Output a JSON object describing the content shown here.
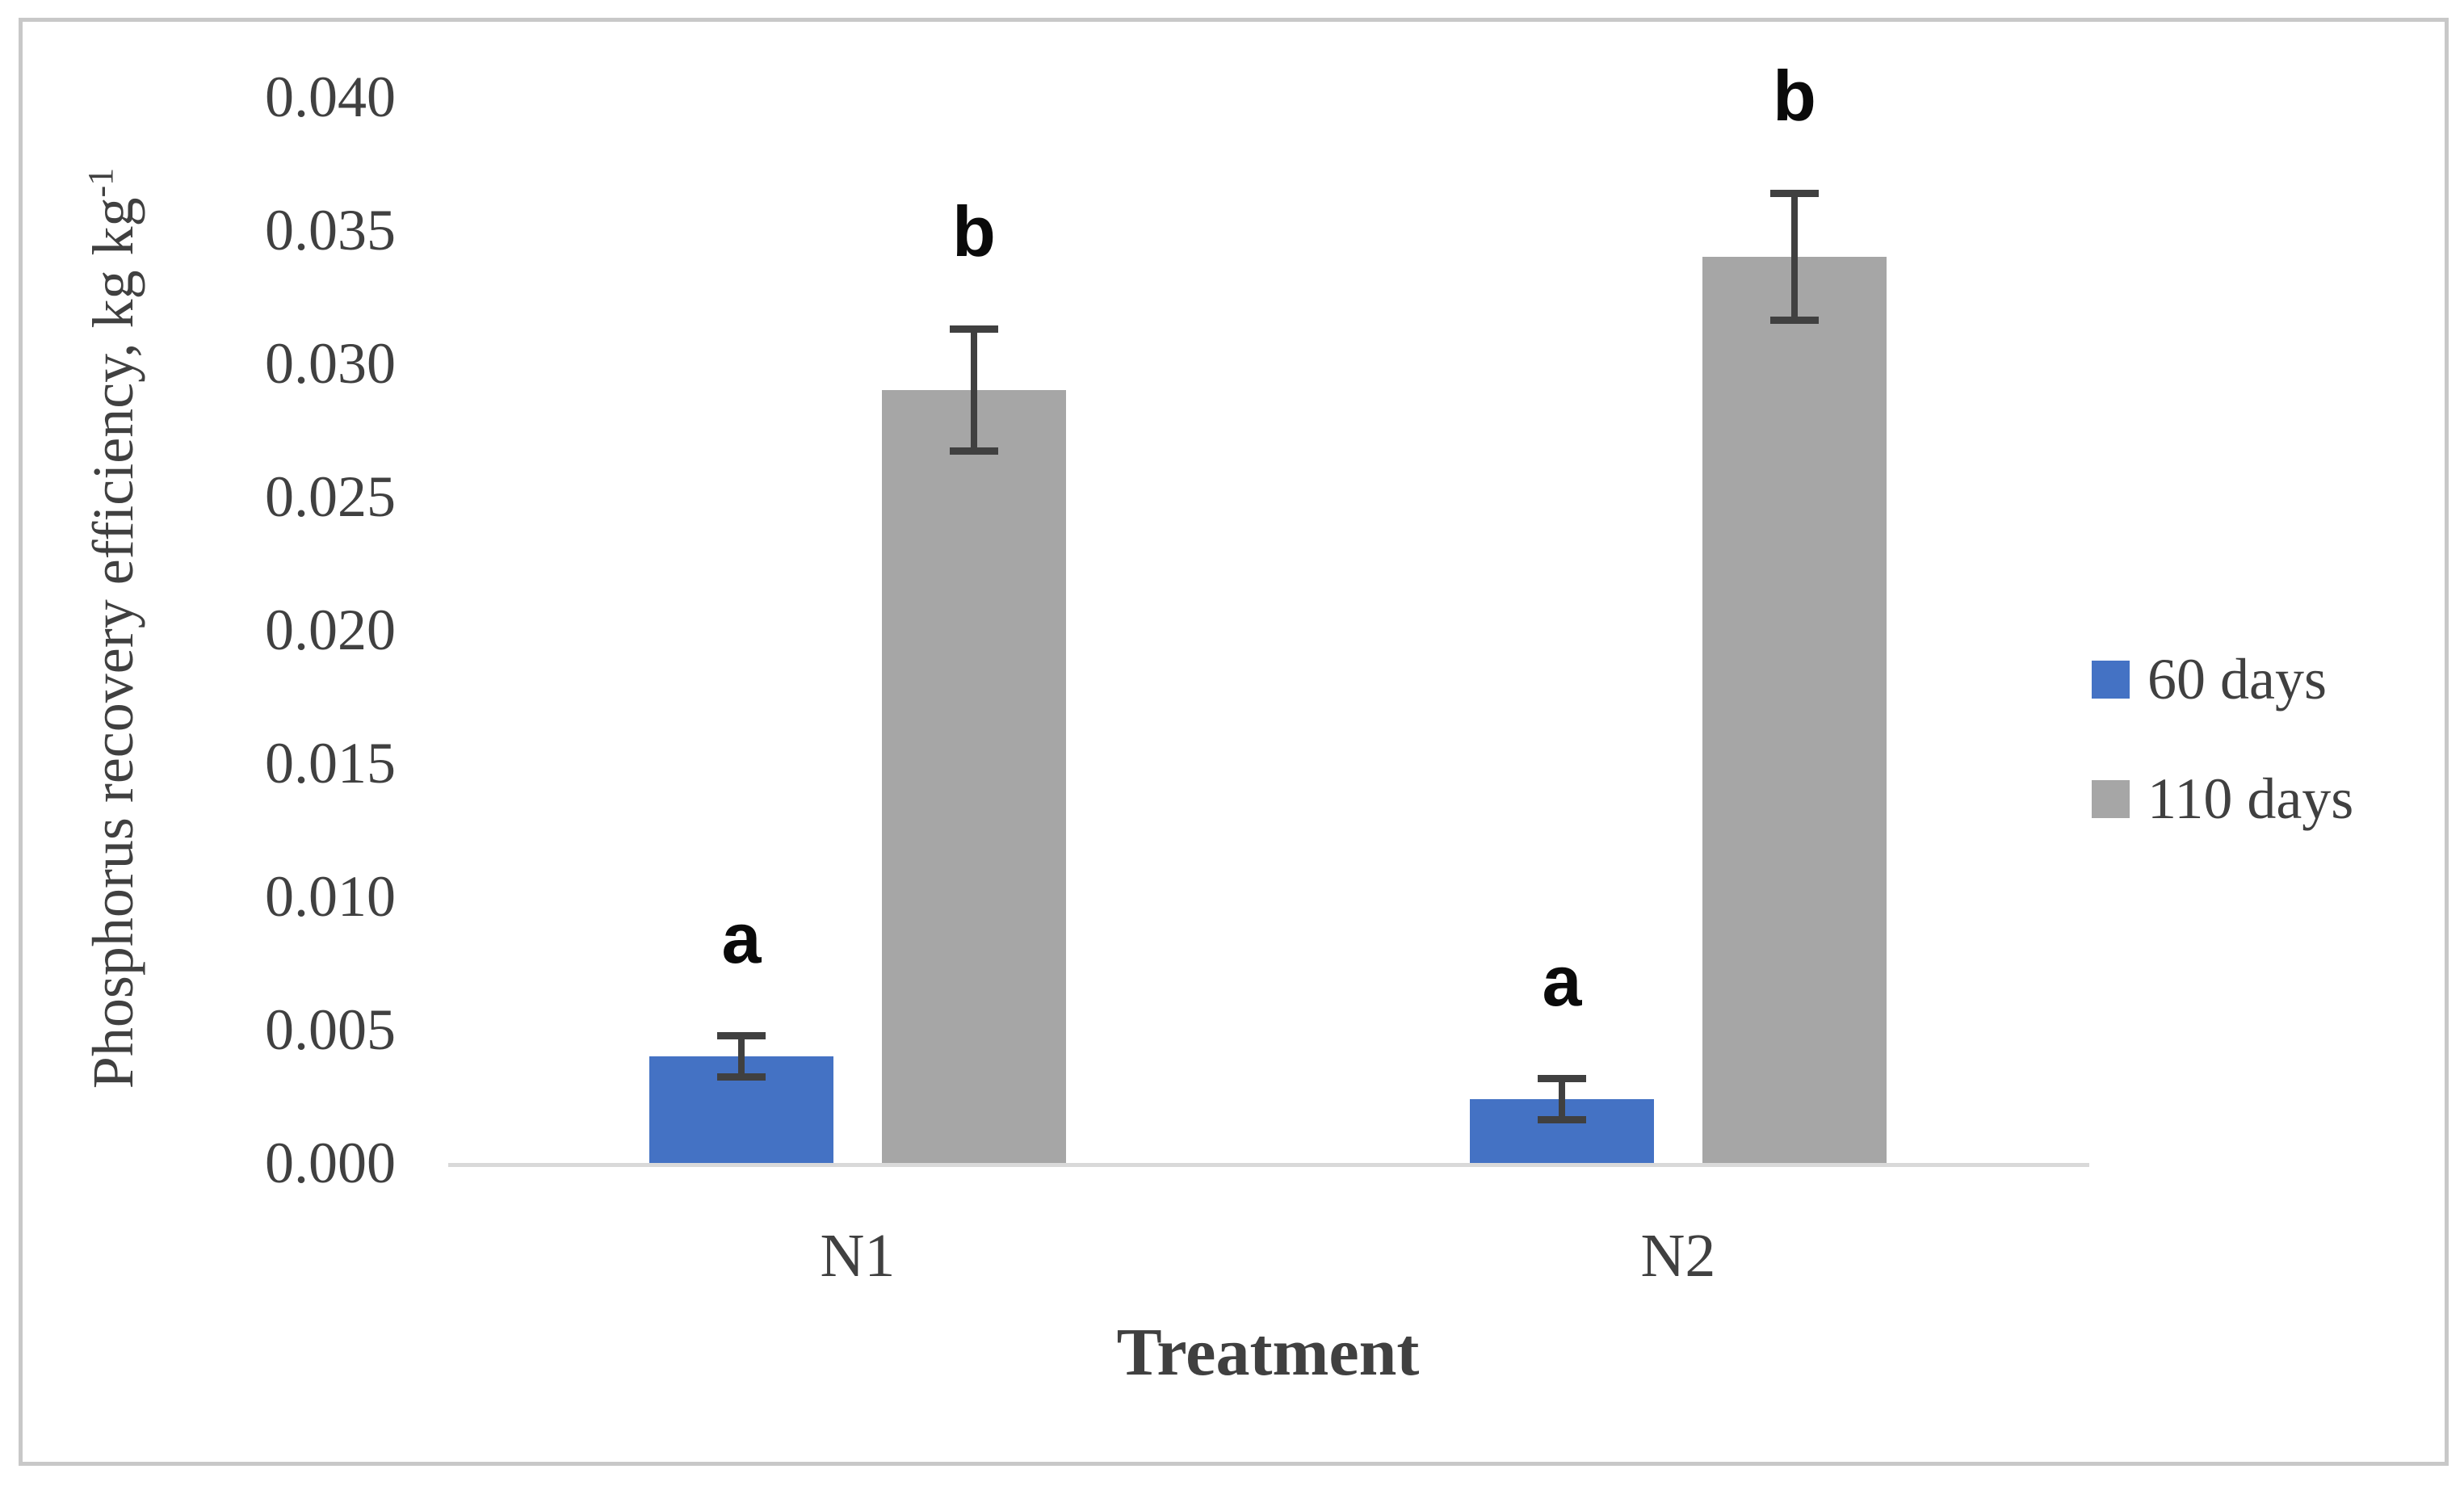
{
  "figure": {
    "background": "#FFFFFF",
    "border_color": "#C8C8C8"
  },
  "chart_data": {
    "type": "bar",
    "title": "",
    "categories": [
      "N1",
      "N2"
    ],
    "series": [
      {
        "name": "60 days",
        "color": "#4472C4",
        "values": [
          0.004,
          0.0024
        ],
        "errors": [
          0.0008,
          0.0008
        ],
        "sig_letters": [
          "a",
          "a"
        ]
      },
      {
        "name": "110 days",
        "color": "#A6A6A6",
        "values": [
          0.029,
          0.034
        ],
        "errors": [
          0.0023,
          0.0024
        ],
        "sig_letters": [
          "b",
          "b"
        ]
      }
    ],
    "xlabel": "Treatment",
    "ylabel_main": "Phosphorus recovery efficiency, kg kg",
    "ylabel_sup": "-1",
    "ylim": [
      0,
      0.04
    ],
    "ytick_step": 0.005,
    "yticks": [
      "0.040",
      "0.035",
      "0.030",
      "0.025",
      "0.020",
      "0.015",
      "0.010",
      "0.005",
      "0.000"
    ],
    "grid": false,
    "legend_position": "right",
    "error_bar_color": "#404040",
    "axis_line_color": "#D9D9D9",
    "tick_label_color": "#404040"
  },
  "legend": {
    "items": [
      {
        "label": "60 days",
        "color": "#4472C4"
      },
      {
        "label": "110 days",
        "color": "#A6A6A6"
      }
    ]
  }
}
